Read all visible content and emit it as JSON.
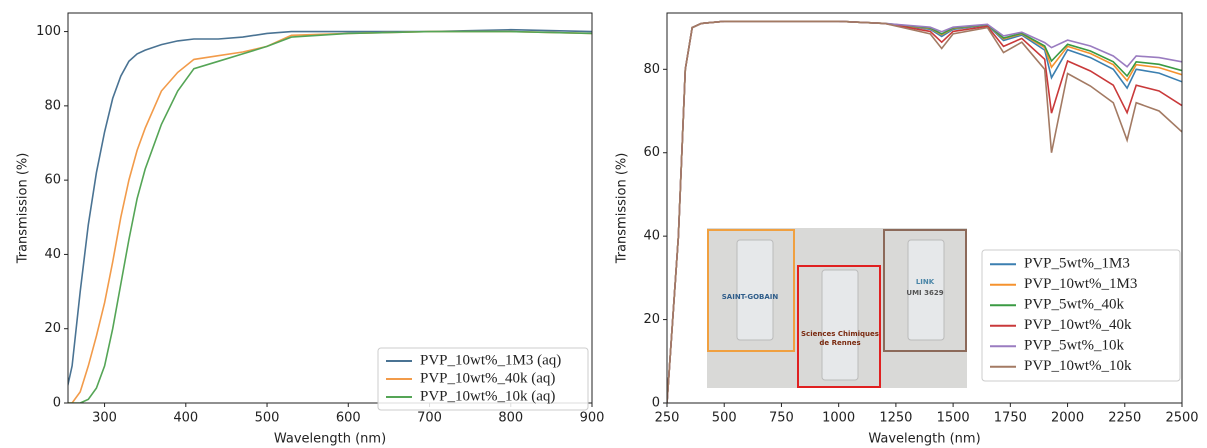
{
  "chart_data": [
    {
      "type": "line",
      "xlabel": "Wavelength (nm)",
      "ylabel": "Transmission (%)",
      "xlim": [
        255,
        900
      ],
      "ylim": [
        0,
        105
      ],
      "xticks": [
        300,
        400,
        500,
        600,
        700,
        800,
        900
      ],
      "yticks": [
        0,
        20,
        40,
        60,
        80,
        100
      ],
      "legend": "lower right",
      "x": [
        250,
        260,
        270,
        280,
        290,
        300,
        310,
        320,
        330,
        340,
        350,
        370,
        390,
        410,
        440,
        470,
        500,
        530,
        600,
        700,
        800,
        900
      ],
      "series": [
        {
          "name": "PVP_10wt%_1M3 (aq)",
          "color": "#4a7393",
          "values": [
            0,
            10,
            30,
            48,
            62,
            73,
            82,
            88,
            92,
            94,
            95,
            96.5,
            97.5,
            98,
            98,
            98.5,
            99.5,
            100,
            100,
            100,
            100.5,
            100
          ]
        },
        {
          "name": "PVP_10wt%_40k (aq)",
          "color": "#f29b4a",
          "values": [
            0,
            0,
            3,
            10,
            18,
            27,
            38,
            50,
            60,
            68,
            74,
            84,
            89,
            92.5,
            93.5,
            94.5,
            96,
            99,
            99.5,
            100,
            100,
            99.5
          ]
        },
        {
          "name": "PVP_10wt%_10k (aq)",
          "color": "#55a556",
          "values": [
            0,
            0,
            0,
            1,
            4,
            10,
            20,
            32,
            44,
            55,
            63,
            75,
            84,
            90,
            92,
            94,
            96,
            98.5,
            99.5,
            100,
            100,
            99.5
          ]
        }
      ]
    },
    {
      "type": "line",
      "xlabel": "Wavelength (nm)",
      "ylabel": "Transmission (%)",
      "xlim": [
        250,
        2500
      ],
      "ylim": [
        0,
        93.5
      ],
      "xticks": [
        250,
        500,
        750,
        1000,
        1250,
        1500,
        1750,
        2000,
        2250,
        2500
      ],
      "yticks": [
        0,
        20,
        40,
        60,
        80
      ],
      "legend": "lower right",
      "image_labels": [
        "SAINT-GOBAIN",
        "Sciences Chimiques",
        "de Rennes",
        "LINK",
        "UMI 3629"
      ],
      "x": [
        250,
        300,
        330,
        360,
        400,
        500,
        1000,
        1200,
        1400,
        1450,
        1500,
        1650,
        1720,
        1800,
        1900,
        1930,
        2000,
        2100,
        2200,
        2260,
        2300,
        2400,
        2500
      ],
      "series": [
        {
          "name": "PVP_5wt%_1M3",
          "color": "#3b7fb0",
          "values": [
            0,
            40,
            80,
            90,
            91,
            91.5,
            91.5,
            91,
            89.6,
            87.9,
            89.6,
            90.6,
            86.9,
            88.2,
            84.6,
            78,
            84.7,
            82.8,
            80,
            75.5,
            80,
            79.1,
            77
          ]
        },
        {
          "name": "PVP_10wt%_1M3",
          "color": "#f5922e",
          "values": [
            0,
            40,
            80,
            90,
            91,
            91.5,
            91.5,
            91,
            89.8,
            88.3,
            89.8,
            90.7,
            87.3,
            88.5,
            85.2,
            80.5,
            85.5,
            83.8,
            81.1,
            77.3,
            81.1,
            80.4,
            78.7
          ]
        },
        {
          "name": "PVP_5wt%_40k",
          "color": "#3a9a43",
          "values": [
            0,
            40,
            80,
            90,
            91,
            91.5,
            91.5,
            91,
            89.9,
            88.5,
            89.9,
            90.7,
            87.5,
            88.6,
            85.6,
            82,
            86,
            84.4,
            81.8,
            78.4,
            81.8,
            81.2,
            79.7
          ]
        },
        {
          "name": "PVP_10wt%_40k",
          "color": "#c9393a",
          "values": [
            0,
            40,
            80,
            90,
            91,
            91.5,
            91.5,
            91,
            89.1,
            86.5,
            89.1,
            90.3,
            85.5,
            87.4,
            82.4,
            69.5,
            82,
            79.6,
            76.2,
            69.6,
            76.2,
            74.8,
            71.3
          ]
        },
        {
          "name": "PVP_5wt%_10k",
          "color": "#9a7cc0",
          "values": [
            0,
            40,
            80,
            90,
            91,
            91.5,
            91.5,
            91,
            90.1,
            89,
            90.1,
            90.8,
            88,
            88.9,
            86.4,
            85.2,
            87,
            85.6,
            83.2,
            80.6,
            83.2,
            82.8,
            81.8
          ]
        },
        {
          "name": "PVP_10wt%_10k",
          "color": "#a37a63",
          "values": [
            0,
            40,
            80,
            90,
            91,
            91.5,
            91.5,
            91,
            88.5,
            85,
            88.5,
            90,
            84,
            86.5,
            80,
            60,
            79,
            76,
            72,
            63,
            72,
            70,
            65
          ]
        }
      ]
    }
  ]
}
